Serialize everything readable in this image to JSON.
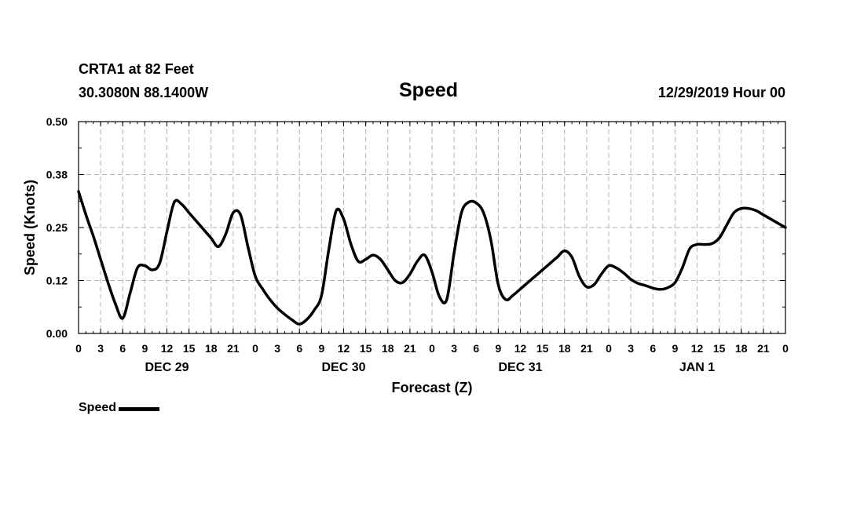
{
  "header": {
    "station_name": "CRTA1 at 82 Feet",
    "station_coords": "30.3080N 88.1400W",
    "title": "Speed",
    "run_time": "12/29/2019 Hour 00"
  },
  "legend": {
    "label": "Speed",
    "color": "#000000"
  },
  "chart_data": {
    "type": "line",
    "title": "Speed",
    "xlabel": "Forecast (Z)",
    "ylabel": "Speed (Knots)",
    "xlim": [
      0,
      96
    ],
    "ylim": [
      0,
      0.5
    ],
    "yticks": [
      "0.00",
      "0.12",
      "0.25",
      "0.38",
      "0.50"
    ],
    "xtick_labels": [
      "0",
      "3",
      "6",
      "9",
      "12",
      "15",
      "18",
      "21",
      "0",
      "3",
      "6",
      "9",
      "12",
      "15",
      "18",
      "21",
      "0",
      "3",
      "6",
      "9",
      "12",
      "15",
      "18",
      "21",
      "0",
      "3",
      "6",
      "9",
      "12",
      "15",
      "18",
      "21",
      "0"
    ],
    "day_labels": [
      {
        "hour": 12,
        "label": "DEC 29"
      },
      {
        "hour": 36,
        "label": "DEC 30"
      },
      {
        "hour": 60,
        "label": "DEC 31"
      },
      {
        "hour": 84,
        "label": "JAN 1"
      }
    ],
    "grid": true,
    "legend_position": "bottom-left",
    "series": [
      {
        "name": "Speed",
        "color": "#000000",
        "x": [
          0,
          1,
          2,
          3,
          4,
          5,
          6,
          7,
          8,
          9,
          10,
          11,
          12,
          13,
          14,
          15,
          16,
          17,
          18,
          19,
          20,
          21,
          22,
          23,
          24,
          25,
          26,
          27,
          28,
          29,
          30,
          31,
          32,
          33,
          34,
          35,
          36,
          37,
          38,
          39,
          40,
          41,
          42,
          43,
          44,
          45,
          46,
          47,
          48,
          49,
          50,
          51,
          52,
          53,
          54,
          55,
          56,
          57,
          58,
          59,
          60,
          61,
          62,
          63,
          64,
          65,
          66,
          67,
          68,
          69,
          70,
          71,
          72,
          73,
          74,
          75,
          76,
          77,
          78,
          79,
          80,
          81,
          82,
          83,
          84,
          85,
          86,
          87,
          88,
          89,
          90,
          91,
          92,
          93,
          94,
          95,
          96
        ],
        "values": [
          0.335,
          0.28,
          0.23,
          0.175,
          0.12,
          0.07,
          0.036,
          0.095,
          0.155,
          0.16,
          0.15,
          0.165,
          0.24,
          0.31,
          0.305,
          0.285,
          0.265,
          0.245,
          0.225,
          0.205,
          0.235,
          0.285,
          0.28,
          0.205,
          0.135,
          0.105,
          0.08,
          0.06,
          0.045,
          0.032,
          0.022,
          0.033,
          0.055,
          0.09,
          0.2,
          0.29,
          0.27,
          0.21,
          0.17,
          0.175,
          0.185,
          0.175,
          0.15,
          0.125,
          0.12,
          0.14,
          0.17,
          0.185,
          0.145,
          0.087,
          0.08,
          0.19,
          0.285,
          0.31,
          0.308,
          0.285,
          0.22,
          0.115,
          0.08,
          0.09,
          0.105,
          0.12,
          0.135,
          0.15,
          0.165,
          0.18,
          0.195,
          0.18,
          0.135,
          0.11,
          0.115,
          0.14,
          0.16,
          0.155,
          0.143,
          0.128,
          0.118,
          0.113,
          0.107,
          0.104,
          0.108,
          0.12,
          0.155,
          0.2,
          0.21,
          0.21,
          0.212,
          0.225,
          0.255,
          0.285,
          0.295,
          0.295,
          0.29,
          0.28,
          0.27,
          0.26,
          0.25
        ]
      }
    ]
  }
}
